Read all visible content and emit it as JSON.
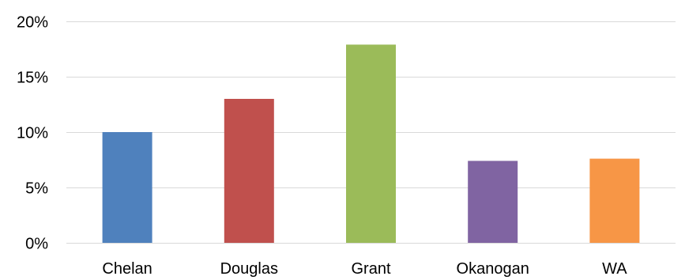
{
  "chart_data": {
    "type": "bar",
    "title": "",
    "xlabel": "",
    "ylabel": "",
    "categories": [
      "Chelan",
      "Douglas",
      "Grant",
      "Okanogan",
      "WA"
    ],
    "values": [
      10.0,
      13.0,
      17.9,
      7.4,
      7.6
    ],
    "colors": [
      "#4F81BD",
      "#C0504D",
      "#9BBB59",
      "#8064A2",
      "#F79646"
    ],
    "ylim": [
      0,
      20
    ],
    "yticks": [
      {
        "value": 0,
        "label": "0%"
      },
      {
        "value": 5,
        "label": "5%"
      },
      {
        "value": 10,
        "label": "10%"
      },
      {
        "value": 15,
        "label": "15%"
      },
      {
        "value": 20,
        "label": "20%"
      }
    ],
    "grid": true,
    "legend": "none",
    "gridline_color": "#D9D9D9"
  }
}
